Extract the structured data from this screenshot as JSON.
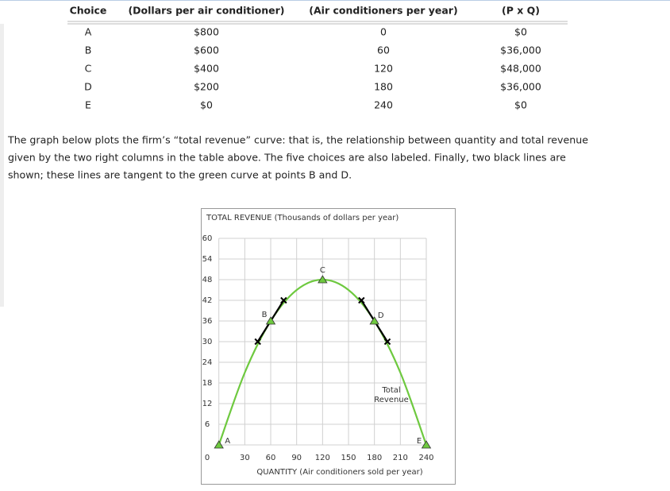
{
  "table": {
    "header": [
      "Choice",
      "(Dollars per air conditioner)",
      "(Air conditioners per year)",
      "(P x Q)"
    ],
    "rows": [
      [
        "A",
        "$800",
        "0",
        "$0"
      ],
      [
        "B",
        "$600",
        "60",
        "$36,000"
      ],
      [
        "C",
        "$400",
        "120",
        "$48,000"
      ],
      [
        "D",
        "$200",
        "180",
        "$36,000"
      ],
      [
        "E",
        "$0",
        "240",
        "$0"
      ]
    ]
  },
  "paragraph": [
    "The graph below plots the firm’s “total revenue” curve: that is, the relationship between quantity and total revenue",
    "given by the two right columns in the table above. The five choices are also labeled. Finally, two black lines are",
    "shown; these lines are tangent to the green curve at points B and D."
  ],
  "chart_data": {
    "type": "line",
    "title": "TOTAL REVENUE (Thousands of dollars per year)",
    "x_label": "QUANTITY (Air conditioners sold per year)",
    "x": [
      0,
      30,
      60,
      90,
      120,
      150,
      180,
      210,
      240
    ],
    "series": [
      {
        "color": "#6ec93f",
        "values": [
          0,
          21,
          36,
          45,
          48,
          45,
          36,
          21,
          0
        ]
      }
    ],
    "points": [
      {
        "label": "A",
        "x": 0,
        "y": 0
      },
      {
        "label": "B",
        "x": 60,
        "y": 36
      },
      {
        "label": "C",
        "x": 120,
        "y": 48
      },
      {
        "label": "D",
        "x": 180,
        "y": 36
      },
      {
        "label": "E",
        "x": 240,
        "y": 0
      }
    ],
    "tangents": [
      {
        "x": [
          45,
          75
        ],
        "y": [
          30,
          42
        ]
      },
      {
        "x": [
          165,
          195
        ],
        "y": [
          42,
          30
        ]
      }
    ],
    "annotation": [
      "Total",
      "Revenue"
    ],
    "xlim": [
      0,
      240
    ],
    "ylim": [
      0,
      60
    ],
    "xticks": [
      30,
      60,
      90,
      120,
      150,
      180,
      210,
      240
    ],
    "yticks": [
      0,
      6,
      12,
      18,
      24,
      30,
      36,
      42,
      48,
      54,
      60
    ],
    "grid": true
  }
}
